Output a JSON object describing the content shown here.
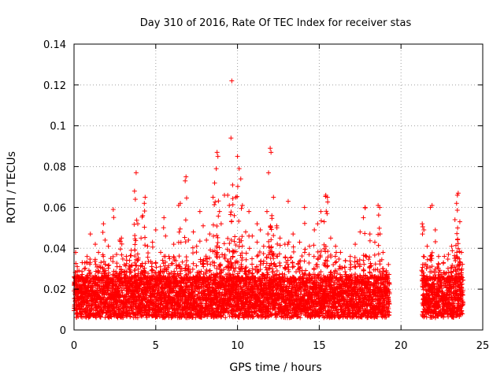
{
  "chart_data": {
    "type": "scatter",
    "title": "Day 310 of 2016, Rate Of TEC Index for receiver stas",
    "xlabel": "GPS time / hours",
    "ylabel": "ROTI / TECUs",
    "xlim": [
      0,
      25
    ],
    "ylim": [
      0,
      0.14
    ],
    "xticks": [
      0,
      5,
      10,
      15,
      20,
      25
    ],
    "xtick_labels": [
      "0",
      "5",
      "10",
      "15",
      "20",
      "25"
    ],
    "yticks": [
      0,
      0.02,
      0.04,
      0.06,
      0.08,
      0.1,
      0.12,
      0.14
    ],
    "ytick_labels": [
      "0",
      "0.02",
      "0.04",
      "0.06",
      "0.08",
      "0.1",
      "0.12",
      "0.14"
    ],
    "grid": true,
    "marker": "+",
    "color": "#ff0000",
    "data_gaps_hours": [
      [
        19.3,
        21.3
      ]
    ],
    "data_ranges_hours": [
      [
        0.0,
        19.3
      ],
      [
        21.3,
        23.8
      ]
    ],
    "series": [
      {
        "name": "ROTI",
        "points": [
          [
            0.1,
            0.038
          ],
          [
            0.2,
            0.031
          ],
          [
            0.3,
            0.029
          ],
          [
            0.5,
            0.033
          ],
          [
            0.8,
            0.036
          ],
          [
            1.0,
            0.047
          ],
          [
            1.3,
            0.042
          ],
          [
            1.5,
            0.038
          ],
          [
            1.8,
            0.052
          ],
          [
            1.9,
            0.044
          ],
          [
            2.1,
            0.041
          ],
          [
            2.4,
            0.059
          ],
          [
            2.6,
            0.037
          ],
          [
            2.8,
            0.044
          ],
          [
            2.9,
            0.045
          ],
          [
            3.2,
            0.036
          ],
          [
            3.5,
            0.039
          ],
          [
            3.7,
            0.068
          ],
          [
            3.75,
            0.064
          ],
          [
            3.8,
            0.077
          ],
          [
            3.9,
            0.052
          ],
          [
            4.1,
            0.045
          ],
          [
            4.2,
            0.056
          ],
          [
            4.3,
            0.062
          ],
          [
            4.35,
            0.065
          ],
          [
            4.5,
            0.041
          ],
          [
            4.8,
            0.043
          ],
          [
            5.0,
            0.049
          ],
          [
            5.3,
            0.038
          ],
          [
            5.5,
            0.055
          ],
          [
            5.6,
            0.046
          ],
          [
            5.8,
            0.036
          ],
          [
            6.1,
            0.042
          ],
          [
            6.4,
            0.061
          ],
          [
            6.5,
            0.062
          ],
          [
            6.8,
            0.073
          ],
          [
            6.85,
            0.075
          ],
          [
            7.0,
            0.044
          ],
          [
            7.3,
            0.048
          ],
          [
            7.5,
            0.041
          ],
          [
            7.7,
            0.058
          ],
          [
            7.9,
            0.051
          ],
          [
            8.1,
            0.044
          ],
          [
            8.3,
            0.047
          ],
          [
            8.5,
            0.065
          ],
          [
            8.6,
            0.072
          ],
          [
            8.7,
            0.079
          ],
          [
            8.75,
            0.087
          ],
          [
            8.8,
            0.085
          ],
          [
            8.9,
            0.058
          ],
          [
            9.0,
            0.052
          ],
          [
            9.2,
            0.066
          ],
          [
            9.4,
            0.066
          ],
          [
            9.5,
            0.061
          ],
          [
            9.6,
            0.094
          ],
          [
            9.65,
            0.122
          ],
          [
            9.7,
            0.071
          ],
          [
            9.8,
            0.056
          ],
          [
            9.9,
            0.065
          ],
          [
            10.0,
            0.085
          ],
          [
            10.1,
            0.079
          ],
          [
            10.2,
            0.074
          ],
          [
            10.3,
            0.061
          ],
          [
            10.5,
            0.048
          ],
          [
            10.7,
            0.058
          ],
          [
            10.9,
            0.046
          ],
          [
            11.2,
            0.052
          ],
          [
            11.4,
            0.049
          ],
          [
            11.6,
            0.041
          ],
          [
            11.8,
            0.058
          ],
          [
            11.9,
            0.077
          ],
          [
            12.0,
            0.089
          ],
          [
            12.05,
            0.087
          ],
          [
            12.1,
            0.056
          ],
          [
            12.2,
            0.065
          ],
          [
            12.4,
            0.051
          ],
          [
            12.6,
            0.045
          ],
          [
            12.9,
            0.042
          ],
          [
            13.1,
            0.063
          ],
          [
            13.4,
            0.047
          ],
          [
            13.8,
            0.043
          ],
          [
            14.1,
            0.06
          ],
          [
            14.4,
            0.041
          ],
          [
            14.7,
            0.049
          ],
          [
            14.9,
            0.052
          ],
          [
            15.1,
            0.058
          ],
          [
            15.3,
            0.053
          ],
          [
            15.4,
            0.066
          ],
          [
            15.5,
            0.065
          ],
          [
            15.7,
            0.045
          ],
          [
            16.0,
            0.041
          ],
          [
            16.3,
            0.038
          ],
          [
            16.6,
            0.034
          ],
          [
            16.9,
            0.036
          ],
          [
            17.2,
            0.042
          ],
          [
            17.5,
            0.048
          ],
          [
            17.7,
            0.055
          ],
          [
            17.8,
            0.06
          ],
          [
            18.1,
            0.047
          ],
          [
            18.4,
            0.043
          ],
          [
            18.6,
            0.061
          ],
          [
            18.7,
            0.06
          ],
          [
            18.9,
            0.038
          ],
          [
            19.1,
            0.029
          ],
          [
            21.3,
            0.052
          ],
          [
            21.4,
            0.049
          ],
          [
            21.6,
            0.041
          ],
          [
            21.8,
            0.06
          ],
          [
            21.9,
            0.061
          ],
          [
            22.1,
            0.049
          ],
          [
            22.3,
            0.036
          ],
          [
            22.6,
            0.033
          ],
          [
            22.9,
            0.037
          ],
          [
            23.1,
            0.041
          ],
          [
            23.3,
            0.054
          ],
          [
            23.4,
            0.062
          ],
          [
            23.45,
            0.066
          ],
          [
            23.5,
            0.067
          ],
          [
            23.6,
            0.053
          ],
          [
            23.7,
            0.038
          ]
        ]
      }
    ]
  }
}
